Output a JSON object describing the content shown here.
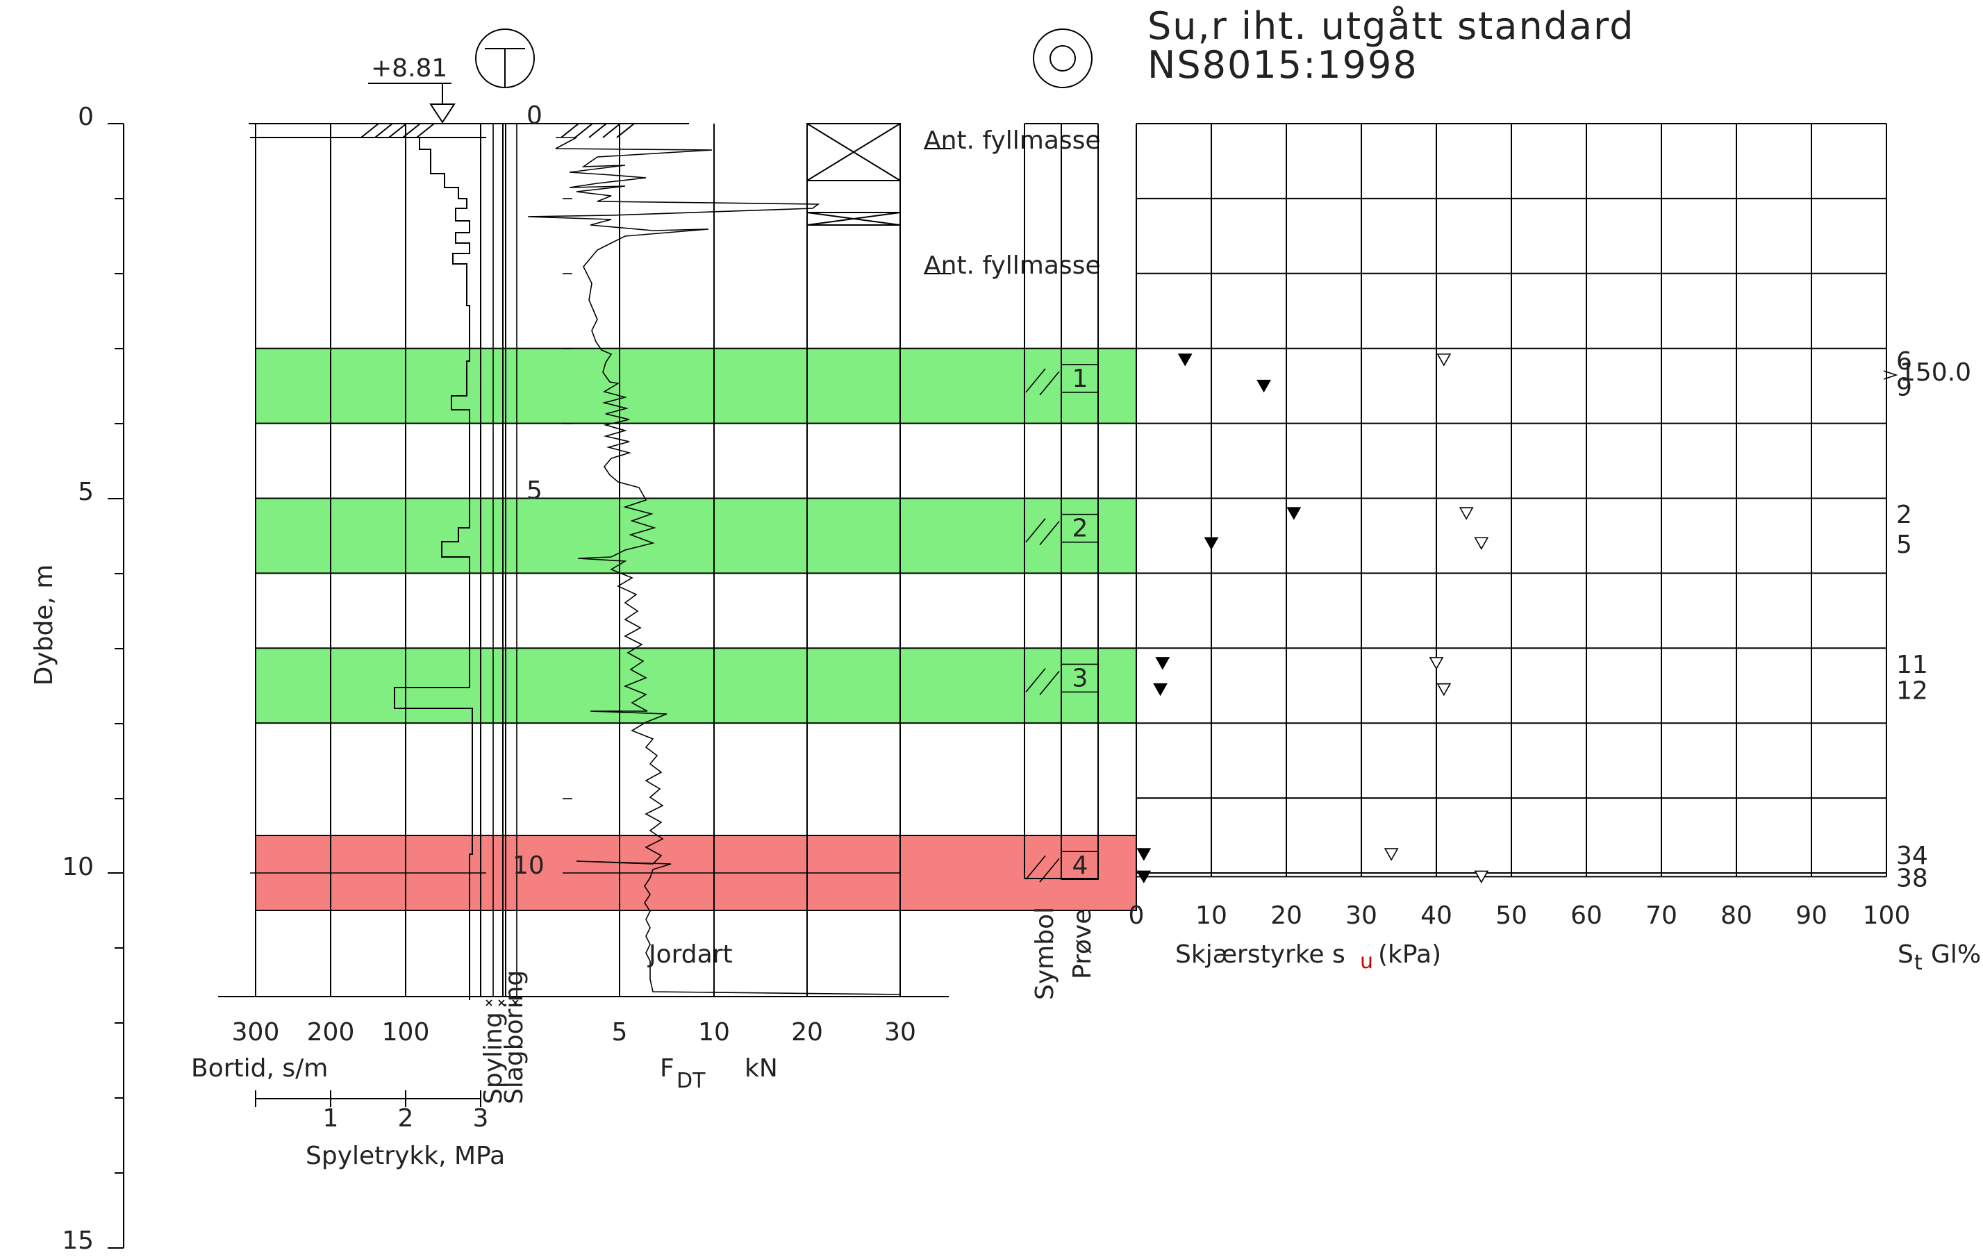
{
  "header": {
    "elevation": "+8.81",
    "title_line1": "Su,r iht. utgått standard",
    "title_line2": "NS8015:1998"
  },
  "depth_axis": {
    "label": "Dybde, m",
    "ticks": [
      "0",
      "5",
      "10",
      "15"
    ]
  },
  "bortid_axis": {
    "label": "Bortid, s/m",
    "ticks": [
      "300",
      "200",
      "100"
    ]
  },
  "spyletrykk_axis": {
    "label": "Spyletrykk, MPa",
    "ticks": [
      "1",
      "2",
      "3"
    ]
  },
  "method_columns": {
    "spyling": "Spyling",
    "slagboring": "Slagboring"
  },
  "fdt_axis": {
    "label_main": "F",
    "label_sub": "DT",
    "unit": "kN",
    "ticks": [
      "5",
      "10",
      "20",
      "30"
    ]
  },
  "inline_depth_marks": [
    "0",
    "5",
    "10"
  ],
  "jordart": {
    "header": "Jordart",
    "fill_label_1": "Ant. fyllmasse",
    "fill_label_2": "Ant. fyllmasse"
  },
  "columns": {
    "symbol": "Symbol",
    "prove": "Prøve"
  },
  "samples": [
    {
      "id": "1",
      "top": 3.0,
      "bottom": 4.0,
      "color": "#80ee80"
    },
    {
      "id": "2",
      "top": 5.0,
      "bottom": 6.0,
      "color": "#80ee80"
    },
    {
      "id": "3",
      "top": 7.0,
      "bottom": 8.0,
      "color": "#80ee80"
    },
    {
      "id": "4",
      "top": 9.5,
      "bottom": 10.5,
      "color": "#f58080"
    }
  ],
  "shear_axis": {
    "label": "Skjærstyrke s",
    "label_sub": "u",
    "unit": "(kPa)",
    "ticks": [
      "0",
      "10",
      "20",
      "30",
      "40",
      "50",
      "60",
      "70",
      "80",
      "90",
      "100"
    ],
    "st_label": "S",
    "st_sub": "t",
    "gl_label": "Gl%"
  },
  "chart_data": {
    "type": "scatter",
    "xlabel": "Skjærstyrke su (kPa)",
    "ylabel": "Dybde, m",
    "xlim": [
      0,
      100
    ],
    "ylim": [
      0,
      15
    ],
    "series": [
      {
        "name": "Su,r",
        "marker": "filled-triangle",
        "points": [
          [
            6.5,
            3.15
          ],
          [
            17,
            3.5
          ],
          [
            21,
            5.2
          ],
          [
            10,
            5.6
          ],
          [
            3.5,
            7.2
          ],
          [
            3.2,
            7.55
          ],
          [
            1,
            9.75
          ],
          [
            1,
            10.05
          ]
        ]
      },
      {
        "name": "Su",
        "marker": "open-triangle",
        "points": [
          [
            41,
            3.15
          ],
          [
            44,
            5.2
          ],
          [
            46,
            5.6
          ],
          [
            40,
            7.2
          ],
          [
            41,
            7.55
          ],
          [
            34,
            9.75
          ],
          [
            46,
            10.05
          ]
        ]
      }
    ],
    "right_values": [
      {
        "depth": 3.15,
        "text": "6"
      },
      {
        "depth": 3.5,
        "text": "9"
      },
      {
        "depth": 5.2,
        "text": "2"
      },
      {
        "depth": 5.6,
        "text": "5"
      },
      {
        "depth": 7.2,
        "text": "11"
      },
      {
        "depth": 7.55,
        "text": "12"
      },
      {
        "depth": 9.75,
        "text": "34"
      },
      {
        "depth": 10.05,
        "text": "38"
      }
    ],
    "side_value": "150.0"
  }
}
